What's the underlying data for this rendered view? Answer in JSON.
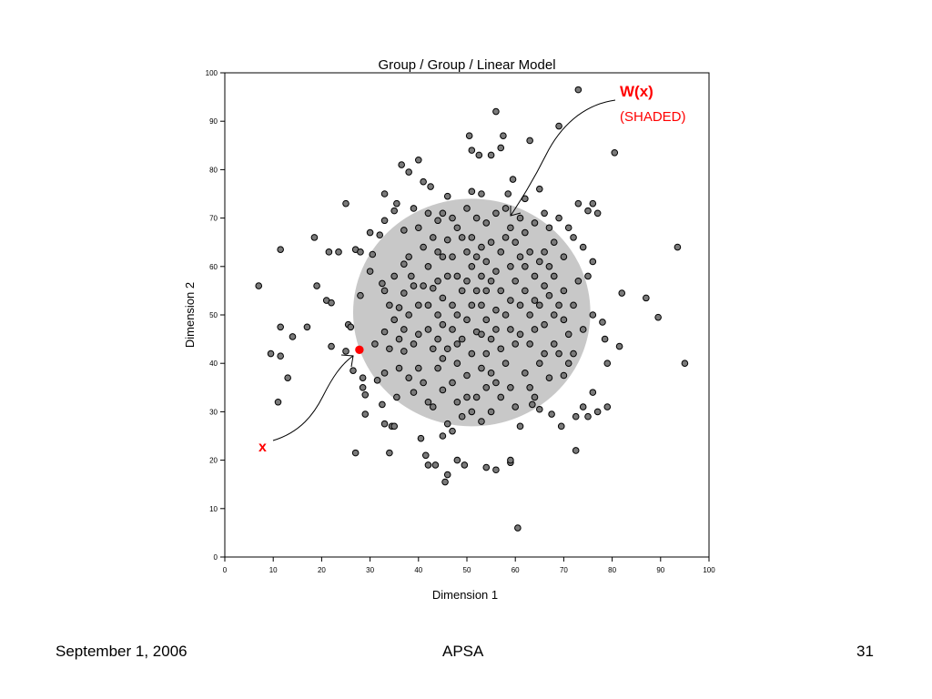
{
  "slide": {
    "footer_date": "September 1, 2006",
    "footer_center": "APSA",
    "page_number": "31"
  },
  "colors": {
    "point_fill": "#7a7a7a",
    "point_stroke": "#000000",
    "shaded_region": "#c8c8c8",
    "highlight": "#ff0000"
  },
  "chart_data": {
    "type": "scatter",
    "title": "Group / Group / Linear Model",
    "xlabel": "Dimension 1",
    "ylabel": "Dimension 2",
    "xlim": [
      0,
      100
    ],
    "ylim": [
      0,
      100
    ],
    "xticks": [
      0,
      10,
      20,
      30,
      40,
      50,
      60,
      70,
      80,
      90,
      100
    ],
    "yticks": [
      0,
      10,
      20,
      30,
      40,
      50,
      60,
      70,
      80,
      90,
      100
    ],
    "grid": false,
    "shaded_region": {
      "shape": "circle",
      "center": [
        51,
        50.5
      ],
      "rx": 24.5,
      "ry": 23.5
    },
    "annotations": [
      {
        "label": "W(x)",
        "sublabel": "(SHADED)",
        "color": "#ff0000",
        "arrow_to": [
          59,
          70
        ]
      },
      {
        "label": "x",
        "color": "#ff0000",
        "arrow_to": [
          27,
          42
        ]
      }
    ],
    "highlight_point": {
      "x": 27.8,
      "y": 42.8,
      "label": "x"
    },
    "points": [
      [
        7,
        56
      ],
      [
        9.5,
        42
      ],
      [
        11.5,
        63.5
      ],
      [
        11.5,
        47.5
      ],
      [
        11.5,
        41.5
      ],
      [
        11,
        32
      ],
      [
        13,
        37
      ],
      [
        14,
        45.5
      ],
      [
        17,
        47.5
      ],
      [
        18.5,
        66
      ],
      [
        19,
        56
      ],
      [
        21,
        53
      ],
      [
        21.5,
        63
      ],
      [
        22,
        52.5
      ],
      [
        22,
        43.5
      ],
      [
        23.5,
        63
      ],
      [
        25,
        73
      ],
      [
        25,
        42.5
      ],
      [
        25.5,
        48
      ],
      [
        26,
        47.5
      ],
      [
        26.5,
        38.5
      ],
      [
        27,
        63.5
      ],
      [
        27,
        21.5
      ],
      [
        28,
        63
      ],
      [
        28,
        54
      ],
      [
        28.5,
        37
      ],
      [
        28.5,
        35
      ],
      [
        29,
        33.5
      ],
      [
        29,
        29.5
      ],
      [
        30,
        67
      ],
      [
        30,
        59
      ],
      [
        30.5,
        62.5
      ],
      [
        31,
        44
      ],
      [
        31.5,
        36.5
      ],
      [
        32,
        66.5
      ],
      [
        32.5,
        56.5
      ],
      [
        32.5,
        31.5
      ],
      [
        33,
        75
      ],
      [
        33,
        69.5
      ],
      [
        33,
        55
      ],
      [
        33,
        46.5
      ],
      [
        33,
        38
      ],
      [
        33,
        27.5
      ],
      [
        34,
        52
      ],
      [
        34,
        43
      ],
      [
        34.5,
        27
      ],
      [
        34,
        21.5
      ],
      [
        35,
        71.5
      ],
      [
        35,
        58
      ],
      [
        35,
        49
      ],
      [
        35.5,
        33
      ],
      [
        35,
        27
      ],
      [
        35.5,
        73
      ],
      [
        36,
        51.5
      ],
      [
        36,
        45
      ],
      [
        36,
        39
      ],
      [
        36.5,
        81
      ],
      [
        37,
        67.5
      ],
      [
        37,
        60.5
      ],
      [
        37,
        54.5
      ],
      [
        37,
        47
      ],
      [
        37,
        42.5
      ],
      [
        38,
        79.5
      ],
      [
        38,
        62
      ],
      [
        38,
        50
      ],
      [
        38,
        37
      ],
      [
        38.5,
        58
      ],
      [
        39,
        72
      ],
      [
        39,
        56
      ],
      [
        39,
        44
      ],
      [
        39,
        34
      ],
      [
        40,
        82
      ],
      [
        40,
        68
      ],
      [
        40,
        52
      ],
      [
        40,
        46
      ],
      [
        40,
        39
      ],
      [
        40.5,
        24.5
      ],
      [
        41,
        77.5
      ],
      [
        41,
        64
      ],
      [
        41,
        56
      ],
      [
        41,
        36
      ],
      [
        41.5,
        21
      ],
      [
        42,
        71
      ],
      [
        42,
        60
      ],
      [
        42,
        52
      ],
      [
        42,
        47
      ],
      [
        42,
        32
      ],
      [
        42,
        19
      ],
      [
        42.5,
        76.5
      ],
      [
        43,
        66
      ],
      [
        43,
        55.5
      ],
      [
        43,
        43
      ],
      [
        43,
        31
      ],
      [
        43.5,
        19
      ],
      [
        44,
        69.5
      ],
      [
        44,
        63
      ],
      [
        44,
        57
      ],
      [
        44,
        50
      ],
      [
        44,
        45
      ],
      [
        44,
        39
      ],
      [
        45,
        71
      ],
      [
        45,
        62
      ],
      [
        45,
        53.5
      ],
      [
        45,
        48
      ],
      [
        45,
        41
      ],
      [
        45,
        34.5
      ],
      [
        45,
        25
      ],
      [
        45.5,
        15.5
      ],
      [
        46,
        74.5
      ],
      [
        46,
        65.5
      ],
      [
        46,
        58
      ],
      [
        46,
        43
      ],
      [
        46,
        27.5
      ],
      [
        46,
        17
      ],
      [
        47,
        70
      ],
      [
        47,
        62
      ],
      [
        47,
        52
      ],
      [
        47,
        47
      ],
      [
        47,
        36
      ],
      [
        47,
        26
      ],
      [
        48,
        68
      ],
      [
        48,
        58
      ],
      [
        48,
        50
      ],
      [
        48,
        44
      ],
      [
        48,
        40
      ],
      [
        48,
        32
      ],
      [
        48,
        20
      ],
      [
        49,
        66
      ],
      [
        49,
        55
      ],
      [
        49,
        45
      ],
      [
        49,
        29
      ],
      [
        49.5,
        19
      ],
      [
        50,
        72
      ],
      [
        50,
        63
      ],
      [
        50,
        57
      ],
      [
        50,
        49
      ],
      [
        50,
        37.5
      ],
      [
        50,
        33
      ],
      [
        50.5,
        87
      ],
      [
        51,
        84
      ],
      [
        51,
        75.5
      ],
      [
        51,
        66
      ],
      [
        51,
        60
      ],
      [
        51,
        52
      ],
      [
        51,
        42
      ],
      [
        51,
        30
      ],
      [
        52,
        70
      ],
      [
        52,
        62
      ],
      [
        52,
        55
      ],
      [
        52,
        46.5
      ],
      [
        52,
        33
      ],
      [
        52.5,
        83
      ],
      [
        53,
        75
      ],
      [
        53,
        64
      ],
      [
        53,
        58
      ],
      [
        53,
        52
      ],
      [
        53,
        46
      ],
      [
        53,
        39
      ],
      [
        53,
        28
      ],
      [
        54,
        69
      ],
      [
        54,
        61
      ],
      [
        54,
        55
      ],
      [
        54,
        49
      ],
      [
        54,
        42
      ],
      [
        54,
        35
      ],
      [
        54,
        18.5
      ],
      [
        55,
        83
      ],
      [
        55,
        65
      ],
      [
        55,
        57
      ],
      [
        55,
        45
      ],
      [
        55,
        38
      ],
      [
        55,
        30
      ],
      [
        56,
        92
      ],
      [
        56,
        71
      ],
      [
        56,
        59
      ],
      [
        56,
        51
      ],
      [
        56,
        47
      ],
      [
        56,
        36
      ],
      [
        56,
        18
      ],
      [
        57,
        84.5
      ],
      [
        57,
        63
      ],
      [
        57,
        55
      ],
      [
        57,
        43
      ],
      [
        57,
        33
      ],
      [
        57.5,
        87
      ],
      [
        58,
        72
      ],
      [
        58,
        66
      ],
      [
        58,
        50
      ],
      [
        58,
        40
      ],
      [
        58.5,
        75
      ],
      [
        59,
        68
      ],
      [
        59,
        60
      ],
      [
        59,
        53
      ],
      [
        59,
        47
      ],
      [
        59,
        35
      ],
      [
        59,
        19.5
      ],
      [
        59,
        20
      ],
      [
        59.5,
        78
      ],
      [
        60,
        65
      ],
      [
        60,
        57
      ],
      [
        60,
        44
      ],
      [
        60,
        31
      ],
      [
        60.5,
        6
      ],
      [
        61,
        70
      ],
      [
        61,
        62
      ],
      [
        61,
        52
      ],
      [
        61,
        46
      ],
      [
        61,
        27
      ],
      [
        62,
        74
      ],
      [
        62,
        67
      ],
      [
        62,
        60
      ],
      [
        62,
        55
      ],
      [
        62,
        38
      ],
      [
        63,
        86
      ],
      [
        63,
        63
      ],
      [
        63,
        50
      ],
      [
        63,
        44
      ],
      [
        63,
        35
      ],
      [
        63.5,
        31.5
      ],
      [
        64,
        69
      ],
      [
        64,
        58
      ],
      [
        64,
        53
      ],
      [
        64,
        47
      ],
      [
        64,
        33
      ],
      [
        65,
        76
      ],
      [
        65,
        61
      ],
      [
        65,
        52
      ],
      [
        65,
        40
      ],
      [
        65,
        30.5
      ],
      [
        66,
        71
      ],
      [
        66,
        63
      ],
      [
        66,
        56
      ],
      [
        66,
        48
      ],
      [
        66,
        42
      ],
      [
        67,
        68
      ],
      [
        67,
        60
      ],
      [
        67,
        54
      ],
      [
        67,
        37
      ],
      [
        67.5,
        29.5
      ],
      [
        68,
        65
      ],
      [
        68,
        58
      ],
      [
        68,
        50
      ],
      [
        68,
        44
      ],
      [
        69,
        89
      ],
      [
        69,
        70
      ],
      [
        69,
        52
      ],
      [
        69,
        42
      ],
      [
        69.5,
        27
      ],
      [
        70,
        62
      ],
      [
        70,
        55
      ],
      [
        70,
        49
      ],
      [
        70,
        37.5
      ],
      [
        71,
        68
      ],
      [
        71,
        46
      ],
      [
        71,
        40
      ],
      [
        72,
        66
      ],
      [
        72,
        52
      ],
      [
        72,
        42
      ],
      [
        72.5,
        22
      ],
      [
        72.5,
        29
      ],
      [
        73,
        96.5
      ],
      [
        73,
        73
      ],
      [
        73,
        57
      ],
      [
        74,
        64
      ],
      [
        74,
        47
      ],
      [
        74,
        31
      ],
      [
        75,
        71.5
      ],
      [
        75,
        58
      ],
      [
        75,
        29
      ],
      [
        76,
        73
      ],
      [
        76,
        61
      ],
      [
        76,
        50
      ],
      [
        76,
        34
      ],
      [
        77,
        30
      ],
      [
        77,
        71
      ],
      [
        78,
        48.5
      ],
      [
        78.5,
        45
      ],
      [
        79,
        40
      ],
      [
        79,
        31
      ],
      [
        80.5,
        83.5
      ],
      [
        81.5,
        43.5
      ],
      [
        82,
        54.5
      ],
      [
        87,
        53.5
      ],
      [
        89.5,
        49.5
      ],
      [
        93.5,
        64
      ],
      [
        95,
        40
      ]
    ]
  }
}
